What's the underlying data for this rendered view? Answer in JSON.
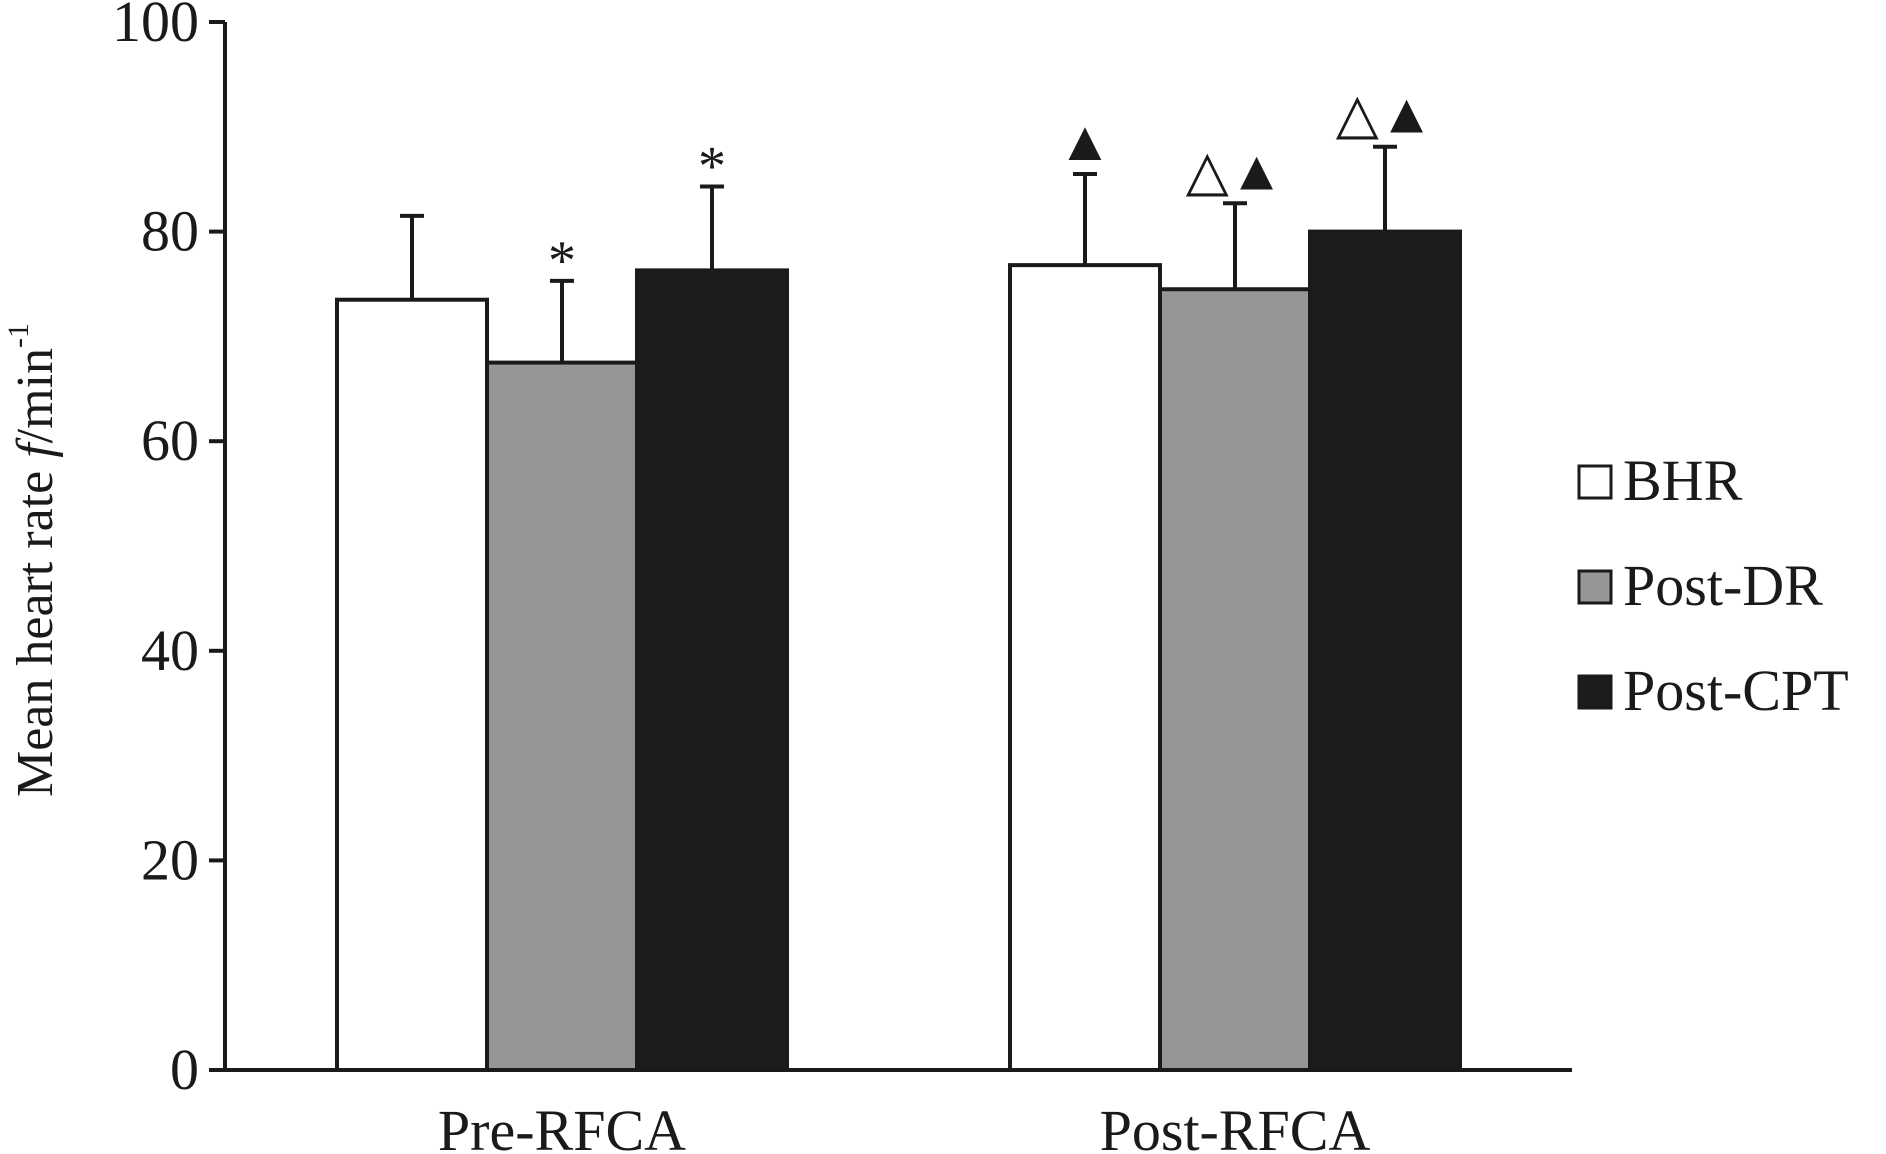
{
  "chart_data": {
    "type": "bar",
    "title": "",
    "xlabel": "",
    "ylabel": {
      "main": "Mean heart rate ",
      "italic": "f",
      "unit": "/min",
      "superscript": "-1"
    },
    "ylim": [
      0,
      100
    ],
    "yticks": [
      "0",
      "20",
      "40",
      "60",
      "80",
      "100"
    ],
    "categories": [
      "Pre-RFCA",
      "Post-RFCA"
    ],
    "series": [
      {
        "name": "BHR",
        "color": "#ffffff",
        "values": [
          73.5,
          76.8
        ],
        "errors": [
          8.0,
          8.7
        ],
        "annotations": [
          "",
          "▲"
        ]
      },
      {
        "name": "Post-DR",
        "color": "#969696",
        "values": [
          67.5,
          74.5
        ],
        "errors": [
          7.8,
          8.2
        ],
        "annotations": [
          "*",
          "△▲"
        ]
      },
      {
        "name": "Post-CPT",
        "color": "#1c1c1c",
        "values": [
          76.3,
          80.0
        ],
        "errors": [
          8.0,
          8.1
        ],
        "annotations": [
          "*",
          "△▲"
        ]
      }
    ],
    "legend_position": "right",
    "grid": false
  }
}
